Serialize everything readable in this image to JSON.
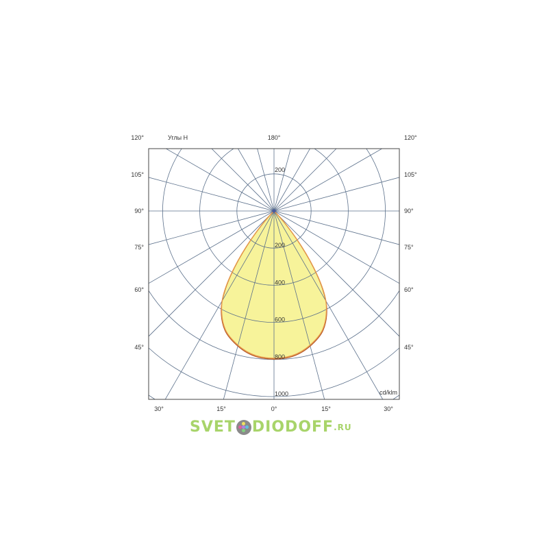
{
  "chart_data": {
    "type": "polar",
    "title_label": "Углы H",
    "unit_label": "cd/klm",
    "radial_ticks": [
      200,
      400,
      600,
      800,
      1000
    ],
    "top_radial_tick": "200",
    "angle_labels_left": [
      "120°",
      "105°",
      "90°",
      "75°",
      "60°",
      "45°"
    ],
    "angle_labels_right": [
      "120°",
      "105°",
      "90°",
      "75°",
      "60°",
      "45°"
    ],
    "angle_label_top": "180°",
    "angle_labels_bottom": [
      "30°",
      "15°",
      "0°",
      "15°",
      "30°"
    ],
    "grid": true,
    "angle_step_deg": 15,
    "fill_color": "#f7f39a",
    "series": [
      {
        "color": "#b5582a",
        "angles": [
          0,
          10,
          20,
          25,
          29,
          31,
          33,
          35,
          37,
          39,
          41,
          44,
          48
        ],
        "values": [
          805,
          790,
          725,
          665,
          590,
          530,
          460,
          375,
          285,
          195,
          115,
          45,
          0
        ]
      },
      {
        "color": "#e89a4a",
        "angles": [
          0,
          10,
          20,
          25,
          29,
          31,
          33,
          35,
          37,
          39,
          41,
          44,
          48
        ],
        "values": [
          800,
          785,
          720,
          660,
          585,
          535,
          465,
          380,
          290,
          200,
          120,
          50,
          0
        ]
      }
    ]
  },
  "logo": {
    "text_left": "SVET",
    "text_right": "DIODOFF",
    "suffix": ".RU"
  }
}
